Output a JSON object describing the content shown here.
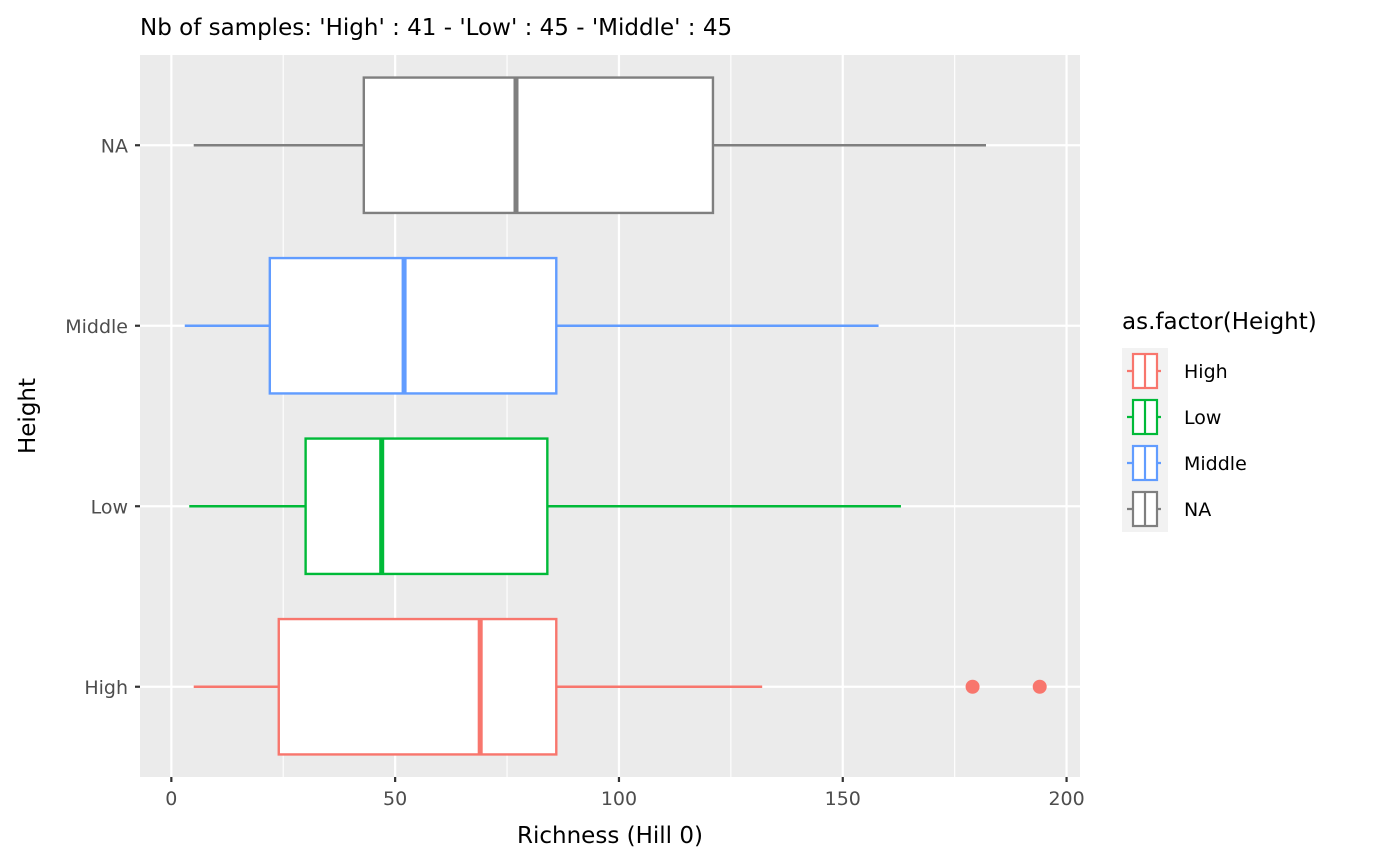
{
  "chart_data": {
    "type": "boxplot",
    "orientation": "horizontal",
    "title": "Nb of samples: 'High' : 41 - 'Low' : 45 - 'Middle' : 45",
    "xlabel": "Richness (Hill 0)",
    "ylabel": "Height",
    "xlim": [
      -7,
      203
    ],
    "xticks": [
      0,
      50,
      100,
      150,
      200
    ],
    "xtick_labels": [
      "0",
      "50",
      "100",
      "150",
      "200"
    ],
    "grid": true,
    "categories": [
      "High",
      "Low",
      "Middle",
      "NA"
    ],
    "series": [
      {
        "name": "High",
        "color": "#F8766D",
        "whisker_low": 5,
        "q1": 24,
        "median": 69,
        "q3": 86,
        "whisker_high": 132,
        "outliers": [
          179,
          194
        ]
      },
      {
        "name": "Low",
        "color": "#00BA38",
        "whisker_low": 4,
        "q1": 30,
        "median": 47,
        "q3": 84,
        "whisker_high": 163,
        "outliers": []
      },
      {
        "name": "Middle",
        "color": "#619CFF",
        "whisker_low": 3,
        "q1": 22,
        "median": 52,
        "q3": 86,
        "whisker_high": 158,
        "outliers": []
      },
      {
        "name": "NA",
        "color": "#7F7F7F",
        "whisker_low": 5,
        "q1": 43,
        "median": 77,
        "q3": 121,
        "whisker_high": 182,
        "outliers": []
      }
    ],
    "legend": {
      "title": "as.factor(Height)",
      "position": "right",
      "entries": [
        "High",
        "Low",
        "Middle",
        "NA"
      ]
    }
  }
}
